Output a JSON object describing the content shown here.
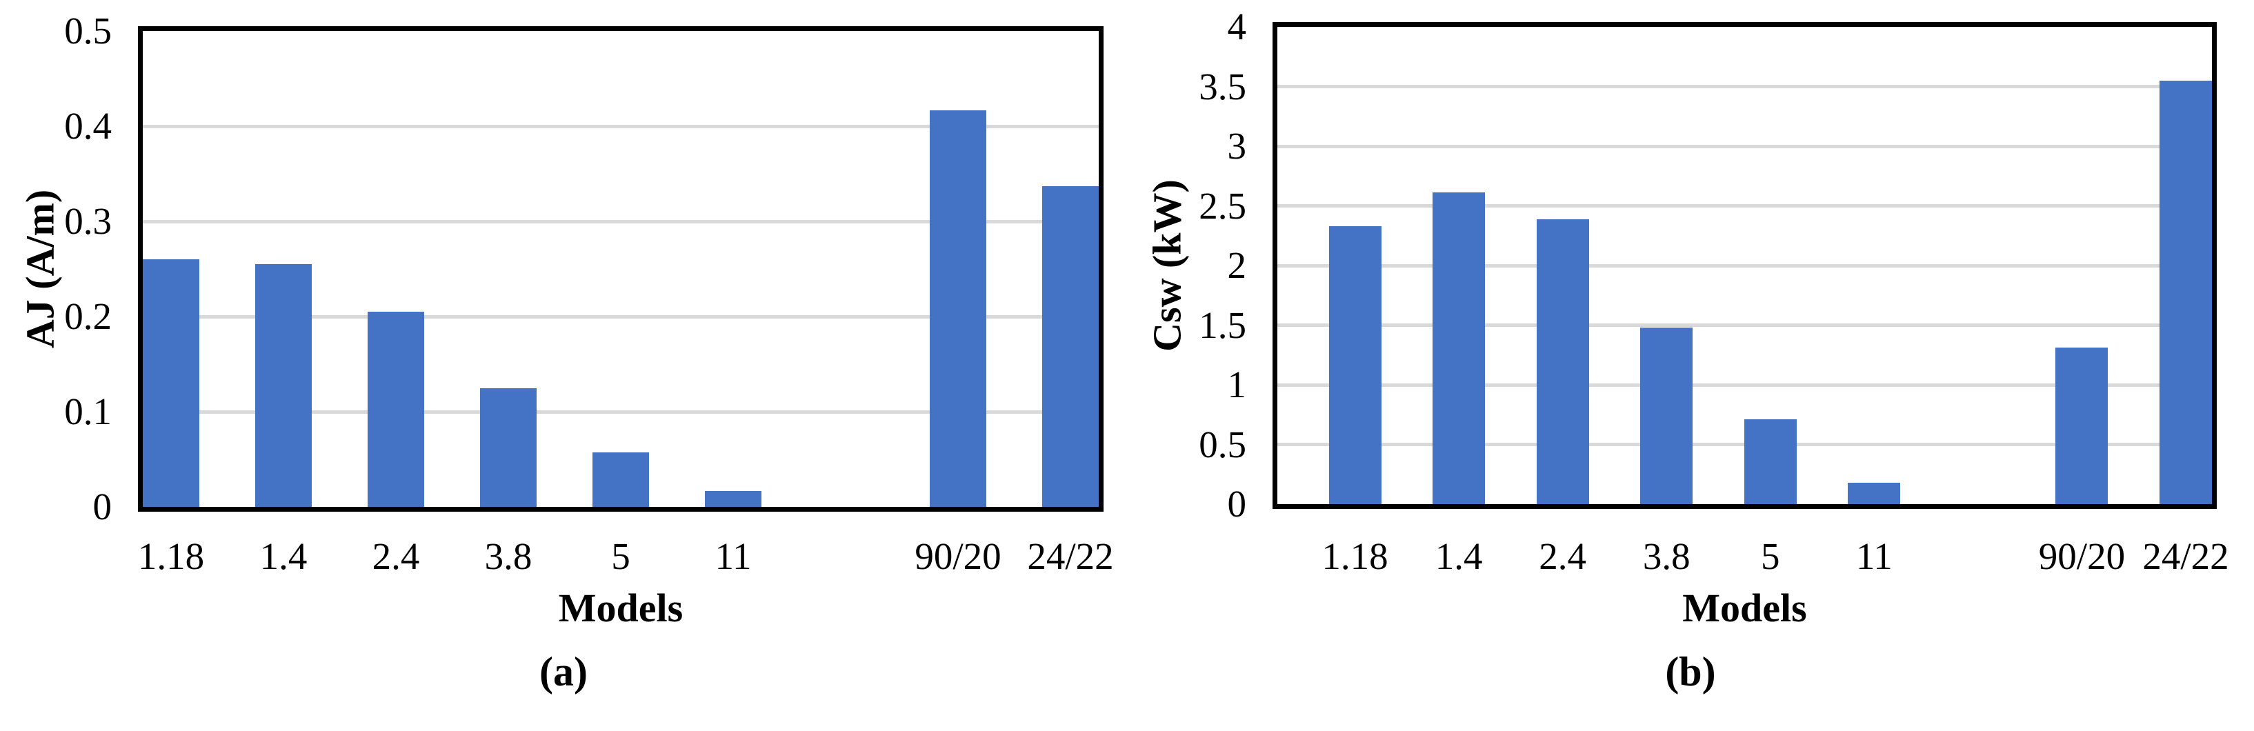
{
  "style": {
    "bar_color": "#4472C4",
    "grid_color": "#D9D9D9",
    "axis_color": "#000000",
    "background": "#FFFFFF"
  },
  "chart_data": [
    {
      "type": "bar",
      "panel_caption": "(a)",
      "title": "",
      "xlabel": "Models",
      "ylabel": "AJ (A/m)",
      "categories": [
        "1.18",
        "1.4",
        "2.4",
        "3.8",
        "5",
        "11",
        "",
        "90/20",
        "24/22"
      ],
      "values": [
        0.26,
        0.255,
        0.205,
        0.125,
        0.057,
        0.017,
        null,
        0.417,
        0.337
      ],
      "ylim": [
        0,
        0.5
      ],
      "ystep": 0.1,
      "ytick_labels": [
        "0",
        "0.1",
        "0.2",
        "0.3",
        "0.4",
        "0.5"
      ],
      "grid": true,
      "legend": "none",
      "bar_align_in_slot": "left"
    },
    {
      "type": "bar",
      "panel_caption": "(b)",
      "title": "",
      "xlabel": "Models",
      "ylabel": "Csw (kW)",
      "categories": [
        "1.18",
        "1.4",
        "2.4",
        "3.8",
        "5",
        "11",
        "",
        "90/20",
        "24/22"
      ],
      "values": [
        2.33,
        2.61,
        2.39,
        1.48,
        0.71,
        0.18,
        null,
        1.31,
        3.55
      ],
      "ylim": [
        0,
        4
      ],
      "ystep": 0.5,
      "ytick_labels": [
        "0",
        "0.5",
        "1",
        "1.5",
        "2",
        "2.5",
        "3",
        "3.5",
        "4"
      ],
      "grid": true,
      "legend": "none",
      "bar_align_in_slot": "right"
    }
  ]
}
